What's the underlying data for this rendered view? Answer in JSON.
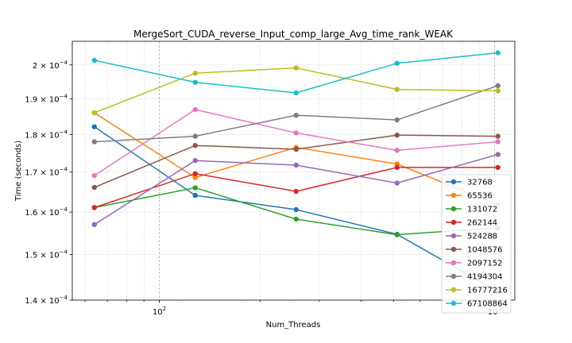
{
  "chart_data": {
    "type": "line",
    "title": "MergeSort_CUDA_reverse_Input_comp_large_Avg_time_rank_WEAK",
    "xlabel": "Num_Threads",
    "ylabel": "Time (seconds)",
    "xscale": "log",
    "yscale": "log",
    "xlim": [
      55,
      1150
    ],
    "ylim": [
      0.00014,
      0.0002073
    ],
    "grid": true,
    "legend_position": "lower-right",
    "x": [
      64,
      128,
      256,
      512,
      1024
    ],
    "x_tick_labels": [
      {
        "value": 100,
        "base": "10",
        "exp": "2"
      },
      {
        "value": 1000,
        "base": "10",
        "exp": "3"
      }
    ],
    "y_tick_labels": [
      {
        "value": 0.00014,
        "mant": "1.4",
        "exp": "−4"
      },
      {
        "value": 0.00015,
        "mant": "1.5",
        "exp": "−4"
      },
      {
        "value": 0.00016,
        "mant": "1.6",
        "exp": "−4"
      },
      {
        "value": 0.00017,
        "mant": "1.7",
        "exp": "−4"
      },
      {
        "value": 0.00018,
        "mant": "1.8",
        "exp": "−4"
      },
      {
        "value": 0.00019,
        "mant": "1.9",
        "exp": "−4"
      },
      {
        "value": 0.0002,
        "mant": "2",
        "exp": "−4"
      }
    ],
    "series": [
      {
        "name": "32768",
        "color": "#1f77b4",
        "values": [
          0.0001821,
          0.0001641,
          0.0001606,
          0.0001547,
          0.0001418
        ]
      },
      {
        "name": "65536",
        "color": "#ff7f0e",
        "values": [
          0.000186,
          0.0001686,
          0.0001765,
          0.0001721,
          0.0001618
        ]
      },
      {
        "name": "131072",
        "color": "#2ca02c",
        "values": [
          0.0001611,
          0.000166,
          0.0001583,
          0.0001546,
          0.0001562
        ]
      },
      {
        "name": "262144",
        "color": "#d62728",
        "values": [
          0.0001611,
          0.0001696,
          0.0001651,
          0.0001712,
          0.0001712
        ]
      },
      {
        "name": "524288",
        "color": "#9467bd",
        "values": [
          0.000157,
          0.000173,
          0.0001718,
          0.0001672,
          0.0001746
        ]
      },
      {
        "name": "1048576",
        "color": "#8c564b",
        "values": [
          0.0001661,
          0.000177,
          0.000176,
          0.0001798,
          0.0001795
        ]
      },
      {
        "name": "2097152",
        "color": "#e377c2",
        "values": [
          0.0001691,
          0.0001869,
          0.0001804,
          0.0001757,
          0.000178
        ]
      },
      {
        "name": "4194304",
        "color": "#7f7f7f",
        "values": [
          0.000178,
          0.0001795,
          0.0001853,
          0.000184,
          0.0001938
        ]
      },
      {
        "name": "16777216",
        "color": "#bcbd22",
        "values": [
          0.000186,
          0.0001975,
          0.0001991,
          0.0001927,
          0.0001923
        ]
      },
      {
        "name": "67108864",
        "color": "#17becf",
        "values": [
          0.0002014,
          0.0001948,
          0.0001917,
          0.0002005,
          0.0002037
        ]
      }
    ]
  }
}
